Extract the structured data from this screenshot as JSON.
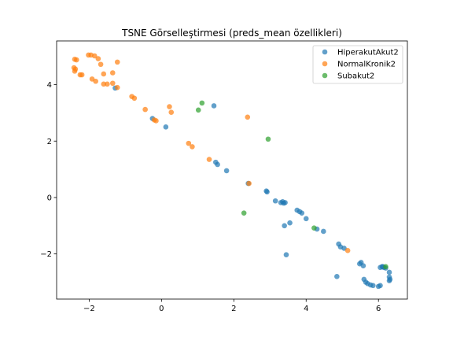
{
  "chart_data": {
    "type": "scatter",
    "title": "TSNE Görselleştirmesi (preds_mean özellikleri)",
    "xlabel": "",
    "ylabel": "",
    "xlim": [
      -2.9,
      6.8
    ],
    "ylim": [
      -3.6,
      5.55
    ],
    "xticks": [
      -2,
      0,
      2,
      4,
      6
    ],
    "yticks": [
      -2,
      0,
      2,
      4
    ],
    "legend_position": "top-right",
    "series": [
      {
        "name": "HiperakutAkut2",
        "color": "#1f77b4",
        "points": [
          [
            -0.25,
            2.8
          ],
          [
            0.12,
            2.5
          ],
          [
            1.45,
            3.25
          ],
          [
            -1.28,
            3.88
          ],
          [
            1.5,
            1.25
          ],
          [
            1.55,
            1.17
          ],
          [
            1.8,
            0.95
          ],
          [
            2.4,
            0.5
          ],
          [
            2.9,
            0.23
          ],
          [
            2.92,
            0.2
          ],
          [
            3.15,
            -0.12
          ],
          [
            3.3,
            -0.18
          ],
          [
            3.35,
            -0.15
          ],
          [
            3.42,
            -0.18
          ],
          [
            3.38,
            -0.2
          ],
          [
            3.4,
            -1.0
          ],
          [
            3.55,
            -0.9
          ],
          [
            3.75,
            -0.45
          ],
          [
            3.82,
            -0.5
          ],
          [
            3.88,
            -0.55
          ],
          [
            4.0,
            -0.75
          ],
          [
            4.3,
            -1.12
          ],
          [
            4.48,
            -1.2
          ],
          [
            3.45,
            -2.03
          ],
          [
            4.85,
            -2.8
          ],
          [
            4.9,
            -1.65
          ],
          [
            4.95,
            -1.75
          ],
          [
            5.05,
            -1.8
          ],
          [
            5.48,
            -2.35
          ],
          [
            5.52,
            -2.3
          ],
          [
            5.58,
            -2.42
          ],
          [
            5.6,
            -2.9
          ],
          [
            5.65,
            -3.0
          ],
          [
            5.7,
            -3.05
          ],
          [
            5.78,
            -3.1
          ],
          [
            5.85,
            -3.12
          ],
          [
            6.0,
            -3.15
          ],
          [
            6.05,
            -3.12
          ],
          [
            6.05,
            -2.48
          ],
          [
            6.1,
            -2.45
          ],
          [
            6.12,
            -2.45
          ],
          [
            6.15,
            -2.48
          ],
          [
            6.2,
            -2.5
          ],
          [
            6.3,
            -2.65
          ],
          [
            6.3,
            -2.82
          ],
          [
            6.32,
            -2.9
          ],
          [
            6.3,
            -2.95
          ]
        ]
      },
      {
        "name": "NormalKronik2",
        "color": "#ff7f0e",
        "points": [
          [
            -2.4,
            4.9
          ],
          [
            -2.35,
            4.88
          ],
          [
            -2.42,
            4.6
          ],
          [
            -2.38,
            4.55
          ],
          [
            -2.4,
            4.48
          ],
          [
            -2.25,
            4.35
          ],
          [
            -2.2,
            4.35
          ],
          [
            -2.02,
            5.05
          ],
          [
            -1.95,
            5.05
          ],
          [
            -1.85,
            5.02
          ],
          [
            -1.75,
            4.92
          ],
          [
            -1.68,
            4.72
          ],
          [
            -1.92,
            4.2
          ],
          [
            -1.82,
            4.12
          ],
          [
            -1.6,
            4.38
          ],
          [
            -1.6,
            4.02
          ],
          [
            -1.5,
            4.02
          ],
          [
            -1.35,
            4.42
          ],
          [
            -1.35,
            4.05
          ],
          [
            -1.22,
            4.8
          ],
          [
            -1.22,
            3.9
          ],
          [
            -0.82,
            3.58
          ],
          [
            -0.75,
            3.52
          ],
          [
            -0.45,
            3.12
          ],
          [
            -0.2,
            2.75
          ],
          [
            -0.15,
            2.72
          ],
          [
            0.22,
            3.22
          ],
          [
            0.27,
            3.02
          ],
          [
            0.75,
            1.92
          ],
          [
            0.85,
            1.8
          ],
          [
            1.32,
            1.35
          ],
          [
            2.38,
            2.85
          ],
          [
            2.42,
            0.5
          ],
          [
            5.15,
            -1.88
          ]
        ]
      },
      {
        "name": "Subakut2",
        "color": "#2ca02c",
        "points": [
          [
            1.12,
            3.35
          ],
          [
            1.02,
            3.1
          ],
          [
            2.95,
            2.07
          ],
          [
            2.28,
            -0.55
          ],
          [
            4.22,
            -1.08
          ],
          [
            6.2,
            -2.45
          ]
        ]
      }
    ]
  }
}
